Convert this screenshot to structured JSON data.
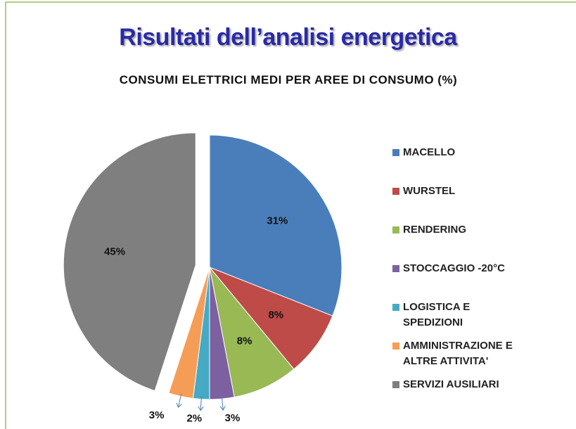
{
  "heading": "Risultati dell’analisi energetica",
  "chart_data": {
    "type": "pie",
    "title": "CONSUMI ELETTRICI MEDI PER AREE DI CONSUMO (%)",
    "categories": [
      "MACELLO",
      "WURSTEL",
      "RENDERING",
      "STOCCAGGIO -20°C",
      "LOGISTICA E SPEDIZIONI",
      "AMMINISTRAZIONE E ALTRE ATTIVITA'",
      "SERVIZI AUSILIARI"
    ],
    "values": [
      31,
      8,
      8,
      3,
      2,
      3,
      45
    ],
    "value_labels": [
      "31%",
      "8%",
      "8%",
      "3%",
      "2%",
      "3%",
      "45%"
    ],
    "colors": [
      "#4a7ebb",
      "#be4b48",
      "#98b954",
      "#7d60a0",
      "#46aac5",
      "#f59d56",
      "#7f7f7f"
    ],
    "legend": "right"
  }
}
